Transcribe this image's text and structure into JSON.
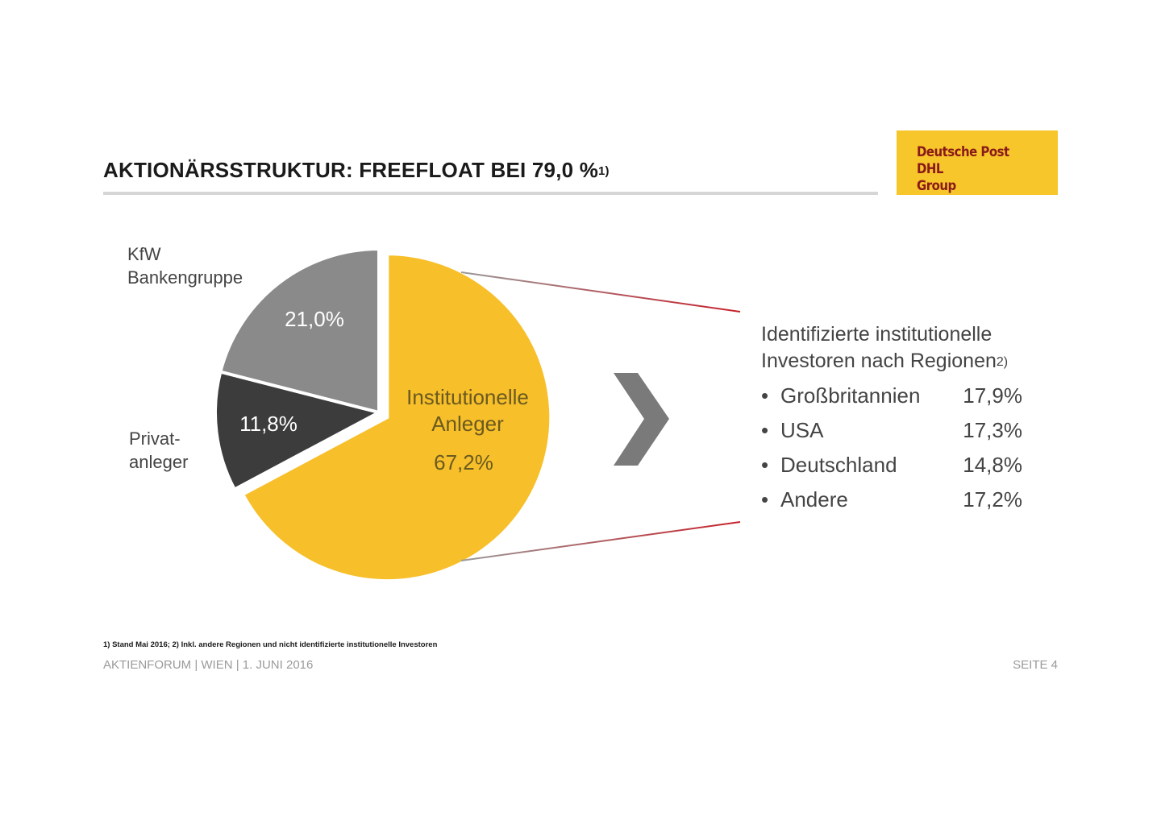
{
  "header": {
    "title": "AKTIONÄRSSTRUKTUR: FREEFLOAT BEI 79,0 %",
    "title_footnote": "1)"
  },
  "logo": {
    "text": "Deutsche Post DHL\nGroup",
    "background": "#f7c62a",
    "text_color": "#8a1a1a"
  },
  "chart_data": {
    "type": "pie",
    "title": "",
    "slices": [
      {
        "name": "Institutionelle Anleger",
        "value": 67.2,
        "label": "67,2%",
        "color": "#f7bf2a",
        "exploded": true
      },
      {
        "name": "Privatanleger",
        "value": 11.8,
        "label": "11,8%",
        "color": "#3c3c3c",
        "exploded": false
      },
      {
        "name": "KfW Bankengruppe",
        "value": 21.0,
        "label": "21,0%",
        "color": "#8a8a8a",
        "exploded": false
      }
    ],
    "outside_labels": {
      "kfw": "KfW\nBankengruppe",
      "privat": "Privat-\nanleger"
    },
    "inside_name": {
      "institutionelle_line1": "Institutionelle",
      "institutionelle_line2": "Anleger"
    }
  },
  "breakdown": {
    "title_line1": "Identifizierte institutionelle",
    "title_line2": "Investoren nach Regionen",
    "title_footnote": "2)",
    "bullet": "•",
    "regions": [
      {
        "name": "Großbritannien",
        "value": "17,9%"
      },
      {
        "name": "USA",
        "value": "17,3%"
      },
      {
        "name": "Deutschland",
        "value": "14,8%"
      },
      {
        "name": "Andere",
        "value": "17,2%"
      }
    ],
    "chevron_color": "#7a7a7a",
    "connector_color": "#c8202a"
  },
  "footer": {
    "footnote": "1) Stand Mai 2016; 2) Inkl. andere Regionen und nicht identifizierte institutionelle Investoren",
    "left": "AKTIENFORUM | WIEN | 1. JUNI 2016",
    "right": "SEITE 4"
  }
}
